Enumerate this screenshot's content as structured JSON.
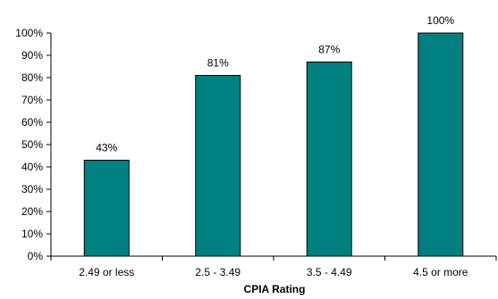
{
  "chart_data": {
    "type": "bar",
    "categories": [
      "2.49 or less",
      "2.5 - 3.49",
      "3.5 - 4.49",
      "4.5 or more"
    ],
    "values": [
      43,
      81,
      87,
      100
    ],
    "data_labels": [
      "43%",
      "81%",
      "87%",
      "100%"
    ],
    "title": "",
    "xlabel": "CPIA Rating",
    "ylabel": "",
    "ylim": [
      0,
      100
    ],
    "yticks": [
      0,
      10,
      20,
      30,
      40,
      50,
      60,
      70,
      80,
      90,
      100
    ],
    "ytick_labels": [
      "0%",
      "10%",
      "20%",
      "30%",
      "40%",
      "50%",
      "60%",
      "70%",
      "80%",
      "90%",
      "100%"
    ],
    "grid": false,
    "bar_color": "#008080",
    "bar_outline": "#000000"
  }
}
